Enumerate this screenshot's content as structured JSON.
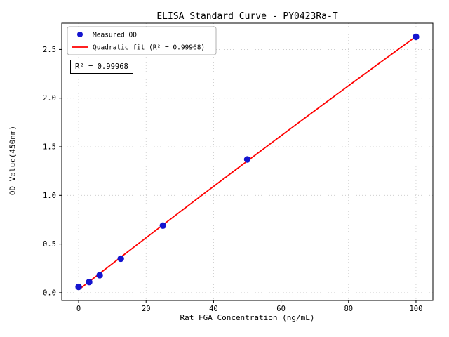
{
  "chart_data": {
    "type": "scatter",
    "title": "ELISA Standard Curve - PY0423Ra-T",
    "xlabel": "Rat FGA Concentration (ng/mL)",
    "ylabel": "OD Value(450nm)",
    "xlim": [
      -5,
      105
    ],
    "ylim": [
      -0.08,
      2.77
    ],
    "xticks": [
      0,
      20,
      40,
      60,
      80,
      100
    ],
    "yticks": [
      0.0,
      0.5,
      1.0,
      1.5,
      2.0,
      2.5
    ],
    "grid": true,
    "legend_position": "upper left",
    "series": [
      {
        "name": "Measured OD",
        "type": "scatter",
        "color": "#1515cf",
        "x": [
          0,
          3.125,
          6.25,
          12.5,
          25,
          50,
          100
        ],
        "y": [
          0.06,
          0.11,
          0.18,
          0.35,
          0.69,
          1.37,
          2.63
        ]
      },
      {
        "name": "Quadratic fit (R² = 0.99968)",
        "type": "quadratic-fit",
        "color": "#ff0000",
        "fit_range": [
          0,
          100
        ]
      }
    ],
    "annotation": "R² = 0.99968",
    "r_squared": 0.99968,
    "colors": {
      "grid": "#c8c8c8",
      "axes": "#000000",
      "background": "#ffffff"
    }
  }
}
